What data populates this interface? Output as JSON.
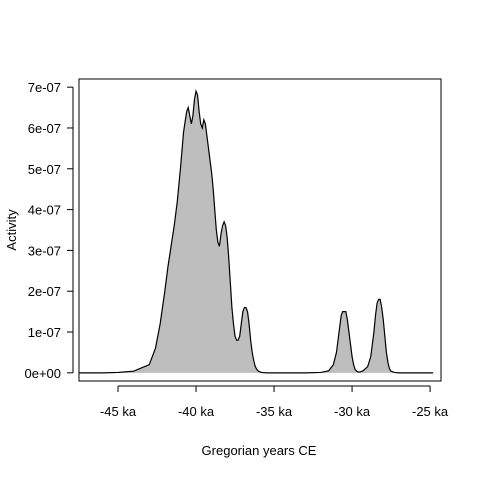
{
  "chart_data": {
    "type": "area",
    "title": "",
    "xlabel": "Gregorian years CE",
    "ylabel": "Activity",
    "xlim": [
      -47500,
      -24300
    ],
    "ylim": [
      -2e-08,
      7.2e-07
    ],
    "x_ticks": [
      -45000,
      -40000,
      -35000,
      -30000,
      -25000
    ],
    "x_tick_labels": [
      "-45 ka",
      "-40 ka",
      "-35 ka",
      "-30 ka",
      "-25 ka"
    ],
    "y_ticks": [
      0,
      1e-07,
      2e-07,
      3e-07,
      4e-07,
      5e-07,
      6e-07,
      7e-07
    ],
    "y_tick_labels": [
      "0e+00",
      "1e-07",
      "2e-07",
      "3e-07",
      "4e-07",
      "5e-07",
      "6e-07",
      "7e-07"
    ],
    "fill_color": "#bebebe",
    "line_color": "#000000",
    "grid": false,
    "series": [
      {
        "x": [
          -47500,
          -46000,
          -45000,
          -44000,
          -43000,
          -42600,
          -42300,
          -42000,
          -41800,
          -41600,
          -41400,
          -41200,
          -41000,
          -40800,
          -40600,
          -40500,
          -40400,
          -40300,
          -40200,
          -40100,
          -40000,
          -39900,
          -39800,
          -39700,
          -39600,
          -39500,
          -39400,
          -39300,
          -39200,
          -39100,
          -39000,
          -38900,
          -38800,
          -38700,
          -38600,
          -38500,
          -38400,
          -38300,
          -38200,
          -38100,
          -38000,
          -37900,
          -37800,
          -37700,
          -37600,
          -37500,
          -37400,
          -37300,
          -37200,
          -37100,
          -37000,
          -36900,
          -36800,
          -36700,
          -36600,
          -36500,
          -36400,
          -36300,
          -36200,
          -36100,
          -36000,
          -35800,
          -35500,
          -35000,
          -34000,
          -33000,
          -32000,
          -31500,
          -31200,
          -31000,
          -30900,
          -30800,
          -30700,
          -30600,
          -30500,
          -30400,
          -30300,
          -30200,
          -30100,
          -30000,
          -29900,
          -29800,
          -29700,
          -29600,
          -29500,
          -29300,
          -29000,
          -28800,
          -28700,
          -28600,
          -28500,
          -28400,
          -28300,
          -28200,
          -28100,
          -28000,
          -27900,
          -27800,
          -27700,
          -27600,
          -27500,
          -27300,
          -27000,
          -26500,
          -25000,
          -24800
        ],
        "values": [
          0,
          0,
          1e-09,
          4e-09,
          2e-08,
          6e-08,
          1.2e-07,
          2e-07,
          2.6e-07,
          3.1e-07,
          3.6e-07,
          4.2e-07,
          5e-07,
          5.9e-07,
          6.4e-07,
          6.5e-07,
          6.3e-07,
          6.1e-07,
          6.3e-07,
          6.7e-07,
          6.9e-07,
          6.8e-07,
          6.4e-07,
          6.1e-07,
          6e-07,
          6.2e-07,
          6.1e-07,
          5.8e-07,
          5.5e-07,
          5.2e-07,
          4.9e-07,
          4.5e-07,
          4e-07,
          3.5e-07,
          3.2e-07,
          3.1e-07,
          3.4e-07,
          3.6e-07,
          3.7e-07,
          3.6e-07,
          3.3e-07,
          2.8e-07,
          2.2e-07,
          1.6e-07,
          1.2e-07,
          9e-08,
          8e-08,
          8e-08,
          9e-08,
          1.2e-07,
          1.5e-07,
          1.6e-07,
          1.6e-07,
          1.5e-07,
          1.2e-07,
          8e-08,
          5e-08,
          3e-08,
          1.5e-08,
          8e-09,
          4e-09,
          1e-09,
          0,
          0,
          0,
          0,
          1e-09,
          5e-09,
          2e-08,
          5e-08,
          8e-08,
          1.1e-07,
          1.4e-07,
          1.5e-07,
          1.5e-07,
          1.5e-07,
          1.3e-07,
          1e-07,
          7e-08,
          4e-08,
          2e-08,
          8e-09,
          4e-09,
          2e-09,
          2e-09,
          5e-09,
          1.5e-08,
          4e-08,
          7e-08,
          1e-07,
          1.4e-07,
          1.7e-07,
          1.8e-07,
          1.8e-07,
          1.6e-07,
          1.3e-07,
          9e-08,
          5e-08,
          2.5e-08,
          1e-08,
          4e-09,
          1e-09,
          0,
          0,
          0,
          0
        ]
      }
    ]
  }
}
